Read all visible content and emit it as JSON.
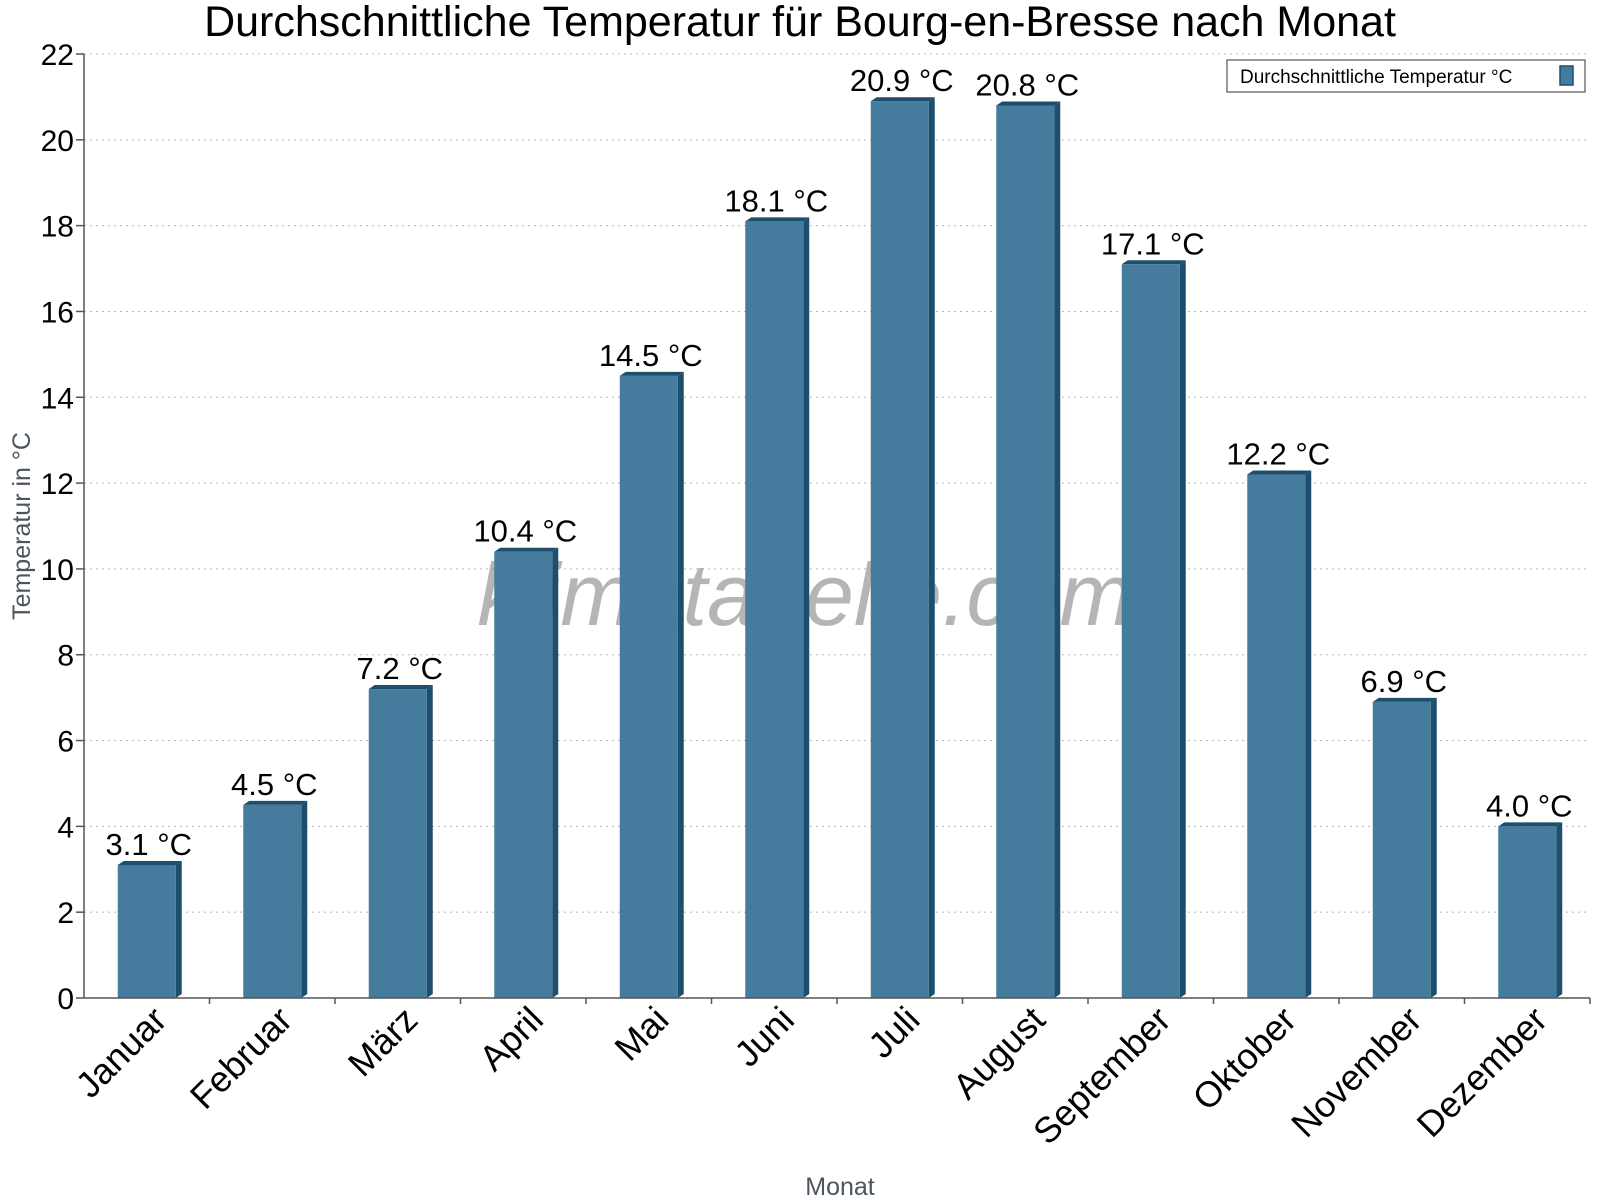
{
  "chart_data": {
    "type": "bar",
    "title": "Durchschnittliche Temperatur für Bourg-en-Bresse nach Monat",
    "xlabel": "Monat",
    "ylabel": "Temperatur in °C",
    "categories": [
      "Januar",
      "Februar",
      "März",
      "April",
      "Mai",
      "Juni",
      "Juli",
      "August",
      "September",
      "Oktober",
      "November",
      "Dezember"
    ],
    "series": [
      {
        "name": "Durchschnittliche Temperatur °C",
        "values": [
          3.1,
          4.5,
          7.2,
          10.4,
          14.5,
          18.1,
          20.9,
          20.8,
          17.1,
          12.2,
          6.9,
          4.0
        ],
        "color": "#457b9d",
        "edge_color": "#1d4e6e"
      }
    ],
    "value_labels": [
      "3.1 °C",
      "4.5 °C",
      "7.2 °C",
      "10.4 °C",
      "14.5 °C",
      "18.1 °C",
      "20.9 °C",
      "20.8 °C",
      "17.1 °C",
      "12.2 °C",
      "6.9 °C",
      "4.0 °C"
    ],
    "ylim": [
      0,
      22
    ],
    "yticks": [
      0,
      2,
      4,
      6,
      8,
      10,
      12,
      14,
      16,
      18,
      20,
      22
    ],
    "grid": "horizontal-dotted",
    "legend_position": "top-right",
    "watermark": "klimatabelle.com"
  }
}
